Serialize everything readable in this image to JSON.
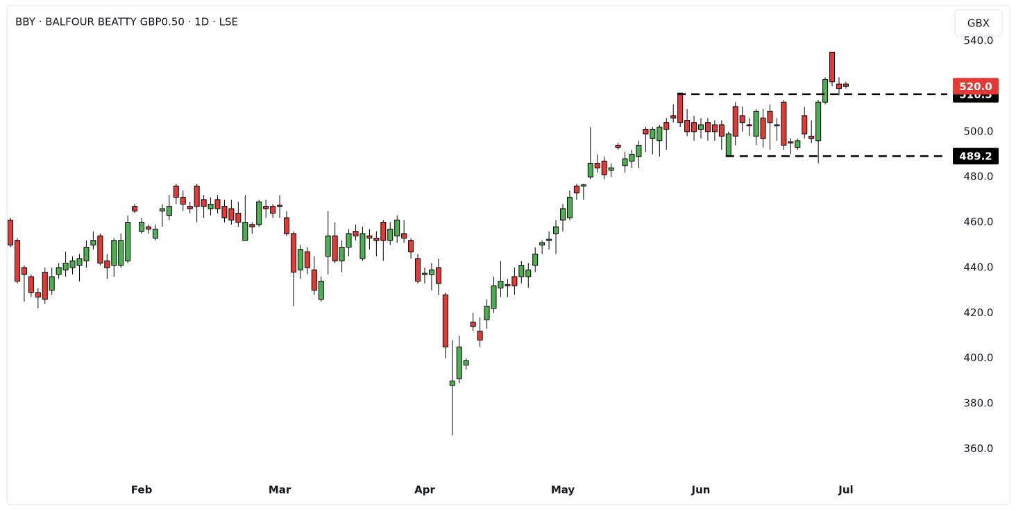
{
  "chart_data": {
    "type": "candlestick",
    "title": "BBY · BALFOUR BEATTY GBP0.50 · 1D · LSE",
    "currency": "GBX",
    "up_color": "#4caf50",
    "down_color": "#e53935",
    "categories": [
      null,
      null,
      null,
      null,
      null,
      null,
      null,
      null,
      null,
      null,
      null,
      null,
      null,
      null,
      null,
      null,
      null,
      null,
      null,
      "Feb",
      null,
      null,
      null,
      null,
      null,
      null,
      null,
      null,
      null,
      null,
      null,
      null,
      null,
      null,
      null,
      null,
      null,
      null,
      null,
      "Mar",
      null,
      null,
      null,
      null,
      null,
      null,
      null,
      null,
      null,
      null,
      null,
      null,
      null,
      null,
      null,
      null,
      null,
      null,
      null,
      null,
      "Apr",
      null,
      null,
      null,
      null,
      null,
      null,
      null,
      null,
      null,
      null,
      null,
      null,
      null,
      null,
      null,
      null,
      null,
      null,
      null,
      "May",
      null,
      null,
      null,
      null,
      null,
      null,
      null,
      null,
      null,
      null,
      null,
      null,
      null,
      null,
      null,
      null,
      null,
      null,
      null,
      "Jun",
      null,
      null,
      null,
      null,
      null,
      null,
      null,
      null,
      null,
      null,
      null,
      null,
      null,
      null,
      null,
      null,
      null,
      null,
      null,
      null,
      "Jul"
    ],
    "open": [
      461,
      452,
      440,
      436,
      429,
      438,
      430,
      437,
      439,
      440,
      441,
      443,
      450,
      454,
      443,
      441,
      441,
      443,
      467,
      456,
      458,
      453,
      465,
      463,
      476,
      471,
      467,
      476,
      470,
      466,
      470,
      467,
      466,
      464,
      452,
      459,
      459,
      467,
      467,
      467.5,
      462,
      455,
      439,
      447,
      439,
      426,
      445,
      454,
      443,
      449,
      456,
      444,
      454,
      453,
      460,
      452,
      454,
      455,
      452,
      444,
      437,
      437,
      440,
      428,
      388,
      391,
      397,
      416,
      412,
      417,
      422,
      431,
      432.5,
      436,
      436,
      436,
      441,
      450,
      452,
      455,
      461,
      462,
      476,
      476,
      480,
      486,
      487,
      483,
      494,
      485,
      487,
      489,
      501,
      497,
      496,
      504,
      507,
      517,
      505,
      504,
      501,
      504,
      503,
      503,
      489,
      511,
      507,
      503,
      498,
      506,
      509,
      502.5,
      513,
      495.5,
      493,
      507,
      498,
      496,
      513,
      535,
      521,
      521
    ],
    "high": [
      462,
      453,
      441,
      437,
      431,
      440,
      440,
      442,
      447,
      445,
      446,
      452,
      456,
      455,
      446,
      453,
      455,
      463,
      468,
      462,
      459,
      459,
      468,
      472,
      477,
      474,
      469,
      477,
      472,
      471,
      472,
      470,
      470,
      469,
      472,
      460,
      470,
      470,
      468,
      472,
      465,
      456,
      450,
      449,
      445,
      436,
      465,
      460,
      452,
      457,
      459,
      458,
      457,
      456,
      461,
      460,
      463,
      461,
      453,
      446,
      440,
      442,
      444,
      429,
      408,
      410,
      400,
      420,
      418,
      426,
      436,
      443,
      435,
      440,
      443,
      442,
      449,
      452,
      456,
      461,
      468,
      474,
      477,
      477,
      502,
      490,
      489,
      486,
      495,
      491,
      492,
      496,
      502,
      502,
      503,
      506,
      512,
      517,
      510,
      507,
      506,
      506,
      505,
      505,
      500,
      513,
      511,
      506,
      510,
      510,
      512,
      506,
      514,
      497,
      497,
      511,
      505,
      514,
      524,
      535,
      524,
      522
    ],
    "low": [
      449,
      433,
      425,
      427,
      422,
      424,
      428,
      435,
      436,
      437,
      434,
      440,
      448,
      441,
      435,
      436,
      440,
      442,
      464,
      455,
      455,
      452,
      458,
      461,
      468,
      465,
      464,
      460,
      462,
      463,
      464,
      460,
      459,
      458,
      452,
      455,
      458,
      462,
      462,
      462,
      454,
      423,
      435,
      437,
      428,
      425,
      437,
      442,
      438,
      445,
      452,
      443,
      448,
      445,
      443,
      450,
      451,
      451,
      444,
      433,
      433,
      430,
      428,
      400,
      366,
      389,
      395,
      412,
      405,
      413,
      420,
      427,
      427,
      428,
      433,
      431,
      438,
      446,
      448,
      446,
      456,
      461,
      470,
      470,
      479,
      482,
      479,
      480,
      492,
      482,
      484,
      484,
      491,
      490,
      489,
      492,
      504,
      502,
      498,
      496,
      497,
      496,
      496,
      492,
      489,
      494,
      500,
      498,
      494,
      493,
      492,
      496,
      492,
      490,
      492,
      497,
      495,
      486,
      512,
      520,
      516,
      519
    ],
    "close": [
      450,
      434,
      437,
      429,
      427,
      426,
      436,
      440,
      442,
      443,
      444,
      449,
      452,
      442,
      440,
      452,
      452,
      460,
      465,
      460,
      457,
      457,
      466,
      467,
      471,
      468,
      466,
      467,
      467,
      468,
      466,
      462,
      461,
      460,
      460,
      458,
      469,
      466,
      464,
      467,
      455,
      438,
      448,
      440,
      430,
      434,
      454,
      443,
      449,
      455,
      454,
      455,
      453,
      452,
      452,
      457,
      461,
      453,
      447,
      434,
      437.5,
      439,
      433,
      405,
      390,
      405,
      399,
      414,
      408,
      423,
      432,
      434,
      432,
      432,
      441,
      439,
      446,
      451,
      452.5,
      458,
      466,
      471,
      473,
      476.5,
      486,
      484,
      481,
      484,
      493,
      488,
      490,
      494,
      499,
      501,
      502,
      501,
      506,
      504,
      500,
      500,
      503,
      500,
      500,
      498,
      499,
      498,
      504,
      502.5,
      509,
      497,
      504,
      503,
      494,
      495,
      496,
      499,
      497,
      513,
      523,
      522,
      519,
      520
    ],
    "ylim": [
      347,
      555
    ],
    "yticks": [
      {
        "value": 360,
        "label": "360.0"
      },
      {
        "value": 380,
        "label": "380.0"
      },
      {
        "value": 400,
        "label": "400.0"
      },
      {
        "value": 420,
        "label": "420.0"
      },
      {
        "value": 440,
        "label": "440.0"
      },
      {
        "value": 460,
        "label": "460.0"
      },
      {
        "value": 480,
        "label": "480.0"
      },
      {
        "value": 500,
        "label": "500.0"
      },
      {
        "value": 520,
        "label": "520.0"
      },
      {
        "value": 540,
        "label": "540.0"
      }
    ],
    "levels": [
      {
        "value": 516.5,
        "color": "#000000"
      },
      {
        "value": 489.2,
        "color": "#000000"
      }
    ],
    "last_price": {
      "value": 520,
      "label": "520.0",
      "color": "#e53935"
    }
  }
}
